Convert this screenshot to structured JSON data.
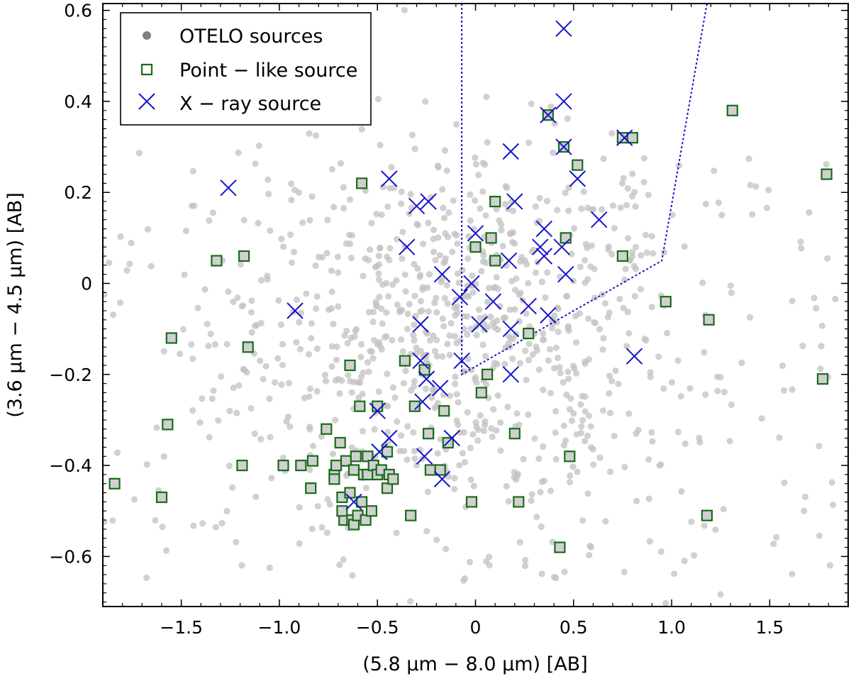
{
  "chart_data": {
    "type": "scatter",
    "xlabel": "(5.8 μm  − 8.0 μm) [AB]",
    "ylabel": "(3.6 μm  − 4.5 μm) [AB]",
    "xlim": [
      -1.9,
      1.9
    ],
    "ylim": [
      -0.71,
      0.615
    ],
    "x_ticks": [
      -1.5,
      -1.0,
      -0.5,
      0,
      0.5,
      1.0,
      1.5
    ],
    "x_tick_labels": [
      "−1.5",
      "−1.0",
      "−0.5",
      "0",
      "0.5",
      "1.0",
      "1.5"
    ],
    "y_ticks": [
      -0.6,
      -0.4,
      -0.2,
      0,
      0.2,
      0.4,
      0.6
    ],
    "y_tick_labels": [
      "−0.6",
      "−0.4",
      "−0.2",
      "0",
      "0.2",
      "0.4",
      "0.6"
    ],
    "grid": false,
    "legend_position": "top-left",
    "legend": [
      {
        "label": "OTELO sources",
        "marker": "dot",
        "color": "#808080"
      },
      {
        "label": "Point − like source",
        "marker": "square",
        "color": "#1a6b1a"
      },
      {
        "label": "X − ray source",
        "marker": "x",
        "color": "#1515c8"
      }
    ],
    "colors": {
      "otelo": "#c2c2c2",
      "point_like": "#1a6b1a",
      "xray": "#1515c8",
      "wedge": "#1515c8"
    },
    "wedge": {
      "style": "dotted",
      "points": [
        [
          -0.07,
          0.615
        ],
        [
          -0.07,
          -0.2
        ],
        [
          0.95,
          0.05
        ],
        [
          1.18,
          0.615
        ]
      ]
    },
    "otelo_sample": {
      "count": 950,
      "x_mean": -0.1,
      "x_sd": 0.6,
      "y_mean": -0.12,
      "y_sd": 0.22
    },
    "series": [
      {
        "name": "Point − like source",
        "points": [
          [
            -1.84,
            -0.44
          ],
          [
            -1.6,
            -0.47
          ],
          [
            -1.57,
            -0.31
          ],
          [
            -1.55,
            -0.12
          ],
          [
            -1.32,
            0.05
          ],
          [
            -1.19,
            -0.4
          ],
          [
            -1.18,
            0.06
          ],
          [
            -1.16,
            -0.14
          ],
          [
            -0.98,
            -0.4
          ],
          [
            -0.89,
            -0.4
          ],
          [
            -0.84,
            -0.45
          ],
          [
            -0.83,
            -0.39
          ],
          [
            -0.76,
            -0.32
          ],
          [
            -0.72,
            -0.42
          ],
          [
            -0.72,
            -0.43
          ],
          [
            -0.71,
            -0.4
          ],
          [
            -0.69,
            -0.35
          ],
          [
            -0.68,
            -0.47
          ],
          [
            -0.67,
            -0.52
          ],
          [
            -0.68,
            -0.5
          ],
          [
            -0.66,
            -0.39
          ],
          [
            -0.64,
            -0.46
          ],
          [
            -0.63,
            -0.52
          ],
          [
            -0.62,
            -0.53
          ],
          [
            -0.62,
            -0.41
          ],
          [
            -0.61,
            -0.38
          ],
          [
            -0.6,
            -0.51
          ],
          [
            -0.59,
            -0.27
          ],
          [
            -0.58,
            -0.48
          ],
          [
            -0.57,
            -0.42
          ],
          [
            -0.56,
            -0.52
          ],
          [
            -0.55,
            -0.42
          ],
          [
            -0.55,
            -0.38
          ],
          [
            -0.53,
            -0.5
          ],
          [
            -0.52,
            -0.4
          ],
          [
            -0.5,
            -0.42
          ],
          [
            -0.48,
            -0.41
          ],
          [
            -0.45,
            -0.37
          ],
          [
            -0.45,
            -0.45
          ],
          [
            -0.44,
            -0.42
          ],
          [
            -0.42,
            -0.43
          ],
          [
            -0.36,
            -0.17
          ],
          [
            -0.33,
            -0.51
          ],
          [
            -0.31,
            -0.27
          ],
          [
            -0.26,
            -0.19
          ],
          [
            -0.24,
            -0.33
          ],
          [
            -0.23,
            -0.41
          ],
          [
            -0.18,
            -0.41
          ],
          [
            -0.16,
            -0.28
          ],
          [
            -0.14,
            -0.35
          ],
          [
            -0.64,
            -0.18
          ],
          [
            -0.58,
            0.22
          ],
          [
            -0.5,
            -0.27
          ],
          [
            -0.02,
            -0.48
          ],
          [
            0.0,
            0.08
          ],
          [
            0.03,
            -0.24
          ],
          [
            0.06,
            -0.2
          ],
          [
            0.08,
            0.1
          ],
          [
            0.1,
            0.05
          ],
          [
            0.1,
            0.18
          ],
          [
            0.2,
            -0.33
          ],
          [
            0.22,
            -0.48
          ],
          [
            0.27,
            -0.11
          ],
          [
            0.37,
            0.37
          ],
          [
            0.43,
            -0.58
          ],
          [
            0.45,
            0.3
          ],
          [
            0.46,
            0.1
          ],
          [
            0.48,
            -0.38
          ],
          [
            0.52,
            0.26
          ],
          [
            0.75,
            0.06
          ],
          [
            0.75,
            0.32
          ],
          [
            0.8,
            0.32
          ],
          [
            0.97,
            -0.04
          ],
          [
            1.18,
            -0.51
          ],
          [
            1.19,
            -0.08
          ],
          [
            1.31,
            0.38
          ],
          [
            1.77,
            -0.21
          ],
          [
            1.79,
            0.24
          ]
        ]
      },
      {
        "name": "X − ray source",
        "points": [
          [
            -1.26,
            0.21
          ],
          [
            -0.92,
            -0.06
          ],
          [
            -0.62,
            -0.48
          ],
          [
            -0.5,
            -0.28
          ],
          [
            -0.49,
            -0.37
          ],
          [
            -0.44,
            -0.34
          ],
          [
            -0.44,
            0.23
          ],
          [
            -0.35,
            0.08
          ],
          [
            -0.3,
            0.17
          ],
          [
            -0.28,
            -0.09
          ],
          [
            -0.28,
            -0.17
          ],
          [
            -0.27,
            -0.26
          ],
          [
            -0.26,
            -0.38
          ],
          [
            -0.25,
            -0.21
          ],
          [
            -0.24,
            0.18
          ],
          [
            -0.18,
            -0.23
          ],
          [
            -0.17,
            0.02
          ],
          [
            -0.17,
            -0.43
          ],
          [
            -0.12,
            -0.34
          ],
          [
            -0.08,
            -0.03
          ],
          [
            -0.07,
            -0.17
          ],
          [
            -0.02,
            0.0
          ],
          [
            0.0,
            0.11
          ],
          [
            0.02,
            -0.09
          ],
          [
            0.09,
            -0.04
          ],
          [
            0.17,
            0.05
          ],
          [
            0.18,
            -0.2
          ],
          [
            0.18,
            -0.1
          ],
          [
            0.18,
            0.29
          ],
          [
            0.2,
            0.18
          ],
          [
            0.27,
            -0.05
          ],
          [
            0.33,
            0.08
          ],
          [
            0.35,
            0.12
          ],
          [
            0.35,
            0.06
          ],
          [
            0.37,
            0.37
          ],
          [
            0.37,
            -0.07
          ],
          [
            0.44,
            0.08
          ],
          [
            0.45,
            0.3
          ],
          [
            0.45,
            0.4
          ],
          [
            0.46,
            0.02
          ],
          [
            0.45,
            0.56
          ],
          [
            0.52,
            0.23
          ],
          [
            0.63,
            0.14
          ],
          [
            0.76,
            0.32
          ],
          [
            0.81,
            -0.16
          ]
        ]
      }
    ]
  }
}
